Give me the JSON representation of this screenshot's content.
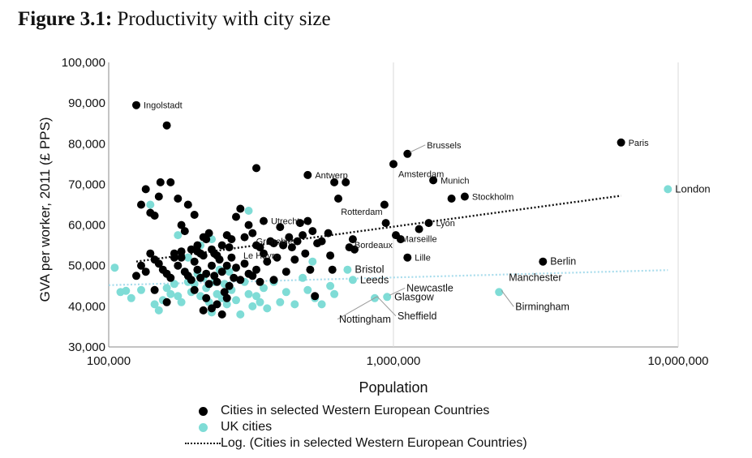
{
  "figure": {
    "label": "Figure 3.1:",
    "title": "Productivity with city size"
  },
  "colors": {
    "western": "#000000",
    "uk": "#7fdcd6",
    "western_trend": "#111111",
    "uk_trend": "#a8dcec",
    "gridline": "#d9d9d9",
    "axis": "#888888"
  },
  "chart_data": {
    "type": "scatter",
    "xlabel": "Population",
    "ylabel": "GVA per worker, 2011 (£ PPS)",
    "xscale": "log",
    "xlim": [
      100000,
      10000000
    ],
    "ylim": [
      30000,
      100000
    ],
    "xticks": [
      100000,
      1000000,
      10000000
    ],
    "xtick_labels": [
      "100,000",
      "1,000,000",
      "10,000,000"
    ],
    "yticks": [
      30000,
      40000,
      50000,
      60000,
      70000,
      80000,
      90000,
      100000
    ],
    "ytick_labels": [
      "30,000",
      "40,000",
      "50,000",
      "60,000",
      "70,000",
      "80,000",
      "90,000",
      "100,000"
    ],
    "vertical_gridline_at": 1000000,
    "series": [
      {
        "name": "Cities in selected Western European Countries",
        "color": "#000000",
        "points": [
          [
            125000,
            89500
          ],
          [
            160000,
            84500
          ],
          [
            330000,
            74000
          ],
          [
            500000,
            72300
          ],
          [
            620000,
            70500
          ],
          [
            680000,
            70500
          ],
          [
            930000,
            65000
          ],
          [
            1020000,
            57500
          ],
          [
            1060000,
            56500
          ],
          [
            1120000,
            52000
          ],
          [
            1230000,
            59000
          ],
          [
            1330000,
            60500
          ],
          [
            720000,
            56500
          ],
          [
            730000,
            54000
          ],
          [
            940000,
            60500
          ],
          [
            1000000,
            75000
          ],
          [
            1120000,
            77500
          ],
          [
            1380000,
            71000
          ],
          [
            1600000,
            66500
          ],
          [
            1780000,
            67000
          ],
          [
            3350000,
            51000
          ],
          [
            6300000,
            80300
          ],
          [
            130000,
            65000
          ],
          [
            135000,
            68800
          ],
          [
            140000,
            63000
          ],
          [
            145000,
            62300
          ],
          [
            150000,
            67000
          ],
          [
            152000,
            70500
          ],
          [
            165000,
            70500
          ],
          [
            175000,
            66500
          ],
          [
            180000,
            60000
          ],
          [
            185000,
            58500
          ],
          [
            190000,
            65000
          ],
          [
            200000,
            62500
          ],
          [
            205000,
            55000
          ],
          [
            210000,
            53000
          ],
          [
            215000,
            57000
          ],
          [
            220000,
            56500
          ],
          [
            225000,
            58000
          ],
          [
            230000,
            54000
          ],
          [
            240000,
            52500
          ],
          [
            250000,
            55000
          ],
          [
            260000,
            57500
          ],
          [
            270000,
            56500
          ],
          [
            280000,
            62000
          ],
          [
            290000,
            64000
          ],
          [
            300000,
            57000
          ],
          [
            310000,
            60000
          ],
          [
            320000,
            58000
          ],
          [
            330000,
            55000
          ],
          [
            340000,
            54500
          ],
          [
            350000,
            61000
          ],
          [
            360000,
            51000
          ],
          [
            370000,
            56000
          ],
          [
            380000,
            55500
          ],
          [
            390000,
            52000
          ],
          [
            400000,
            59500
          ],
          [
            410000,
            55000
          ],
          [
            420000,
            48500
          ],
          [
            430000,
            57000
          ],
          [
            440000,
            54500
          ],
          [
            450000,
            51500
          ],
          [
            460000,
            56000
          ],
          [
            470000,
            60500
          ],
          [
            480000,
            57500
          ],
          [
            490000,
            53000
          ],
          [
            500000,
            61000
          ],
          [
            510000,
            49000
          ],
          [
            520000,
            58500
          ],
          [
            540000,
            55500
          ],
          [
            560000,
            56000
          ],
          [
            590000,
            58000
          ],
          [
            600000,
            52500
          ],
          [
            610000,
            49000
          ],
          [
            640000,
            66500
          ],
          [
            700000,
            54500
          ],
          [
            140000,
            53000
          ],
          [
            145000,
            51500
          ],
          [
            150000,
            50500
          ],
          [
            155000,
            49000
          ],
          [
            160000,
            48000
          ],
          [
            165000,
            47000
          ],
          [
            170000,
            52000
          ],
          [
            175000,
            50000
          ],
          [
            180000,
            53500
          ],
          [
            185000,
            48500
          ],
          [
            190000,
            47500
          ],
          [
            195000,
            46500
          ],
          [
            200000,
            51000
          ],
          [
            205000,
            49000
          ],
          [
            210000,
            47000
          ],
          [
            215000,
            52500
          ],
          [
            220000,
            48000
          ],
          [
            225000,
            45500
          ],
          [
            230000,
            50000
          ],
          [
            235000,
            47500
          ],
          [
            240000,
            46000
          ],
          [
            245000,
            51500
          ],
          [
            250000,
            48500
          ],
          [
            255000,
            43500
          ],
          [
            260000,
            50000
          ],
          [
            265000,
            45000
          ],
          [
            270000,
            52000
          ],
          [
            275000,
            47000
          ],
          [
            280000,
            49500
          ],
          [
            290000,
            46500
          ],
          [
            300000,
            50500
          ],
          [
            310000,
            48000
          ],
          [
            320000,
            47500
          ],
          [
            330000,
            49000
          ],
          [
            340000,
            46000
          ],
          [
            350000,
            53000
          ],
          [
            215000,
            39000
          ],
          [
            230000,
            39500
          ],
          [
            240000,
            40500
          ],
          [
            250000,
            38000
          ],
          [
            260000,
            42000
          ],
          [
            380000,
            46500
          ],
          [
            130000,
            50000
          ],
          [
            135000,
            48500
          ],
          [
            125000,
            47500
          ],
          [
            145000,
            44000
          ],
          [
            160000,
            41000
          ],
          [
            200000,
            44000
          ],
          [
            220000,
            42000
          ],
          [
            530000,
            42500
          ],
          [
            170000,
            53000
          ],
          [
            180000,
            52000
          ],
          [
            195000,
            54000
          ],
          [
            205000,
            53500
          ],
          [
            235000,
            53000
          ],
          [
            265000,
            54500
          ]
        ]
      },
      {
        "name": "UK cities",
        "color": "#7fdcd6",
        "points": [
          [
            9200000,
            68800
          ],
          [
            2350000,
            43500
          ],
          [
            860000,
            42000
          ],
          [
            950000,
            42300
          ],
          [
            690000,
            49000
          ],
          [
            720000,
            46500
          ],
          [
            530000,
            42000
          ],
          [
            310000,
            63500
          ],
          [
            105000,
            49500
          ],
          [
            110000,
            43500
          ],
          [
            115000,
            43800
          ],
          [
            120000,
            42000
          ],
          [
            130000,
            44000
          ],
          [
            140000,
            65000
          ],
          [
            145000,
            40500
          ],
          [
            150000,
            39000
          ],
          [
            155000,
            41500
          ],
          [
            160000,
            44500
          ],
          [
            165000,
            43000
          ],
          [
            170000,
            45500
          ],
          [
            175000,
            42500
          ],
          [
            180000,
            41000
          ],
          [
            185000,
            48500
          ],
          [
            190000,
            46000
          ],
          [
            195000,
            43500
          ],
          [
            200000,
            45500
          ],
          [
            205000,
            48000
          ],
          [
            210000,
            42500
          ],
          [
            215000,
            47000
          ],
          [
            220000,
            44500
          ],
          [
            225000,
            41000
          ],
          [
            230000,
            38500
          ],
          [
            235000,
            46000
          ],
          [
            240000,
            43000
          ],
          [
            245000,
            49000
          ],
          [
            250000,
            42000
          ],
          [
            255000,
            45500
          ],
          [
            260000,
            40500
          ],
          [
            265000,
            48500
          ],
          [
            270000,
            44000
          ],
          [
            280000,
            41500
          ],
          [
            290000,
            38000
          ],
          [
            300000,
            46000
          ],
          [
            310000,
            43000
          ],
          [
            320000,
            40000
          ],
          [
            330000,
            42500
          ],
          [
            340000,
            41000
          ],
          [
            350000,
            44500
          ],
          [
            360000,
            39500
          ],
          [
            380000,
            46000
          ],
          [
            400000,
            41000
          ],
          [
            420000,
            43500
          ],
          [
            450000,
            40500
          ],
          [
            480000,
            47000
          ],
          [
            500000,
            44000
          ],
          [
            560000,
            40500
          ],
          [
            600000,
            45000
          ],
          [
            620000,
            43000
          ],
          [
            520000,
            51000
          ],
          [
            190000,
            52000
          ],
          [
            175000,
            57500
          ],
          [
            230000,
            56500
          ],
          [
            210000,
            55000
          ]
        ]
      }
    ],
    "trendlines": [
      {
        "name": "Log. (Cities in selected Western European Countries)",
        "color": "#111111",
        "style": "dotted",
        "x": [
          125000,
          6300000
        ],
        "y": [
          51000,
          67200
        ]
      },
      {
        "color": "#a8dcec",
        "style": "dotted",
        "x": [
          100000,
          9200000
        ],
        "y": [
          45200,
          48900
        ]
      }
    ],
    "annotations": [
      {
        "text": "Ingolstadt",
        "x": 125000,
        "y": 89500,
        "pos": "right"
      },
      {
        "text": "Antwerp",
        "x": 500000,
        "y": 72300,
        "pos": "right"
      },
      {
        "text": "Brussels",
        "x": 1120000,
        "y": 77500,
        "pos": "leader"
      },
      {
        "text": "Amsterdam",
        "x": 1000000,
        "y": 75000,
        "pos": "below-right"
      },
      {
        "text": "Paris",
        "x": 6300000,
        "y": 80300,
        "pos": "right"
      },
      {
        "text": "Munich",
        "x": 1380000,
        "y": 71000,
        "pos": "right"
      },
      {
        "text": "Stockholm",
        "x": 1780000,
        "y": 67000,
        "pos": "right"
      },
      {
        "text": "London",
        "x": 9200000,
        "y": 68800,
        "pos": "right"
      },
      {
        "text": "Rotterdam",
        "x": 940000,
        "y": 60500,
        "pos": "above-left"
      },
      {
        "text": "Utrecht",
        "x": 350000,
        "y": 61000,
        "pos": "right"
      },
      {
        "text": "Lyon",
        "x": 1330000,
        "y": 60500,
        "pos": "right"
      },
      {
        "text": "Marseille",
        "x": 1230000,
        "y": 59000,
        "pos": "below"
      },
      {
        "text": "Grenoble",
        "x": 470000,
        "y": 56000,
        "pos": "left"
      },
      {
        "text": "Bordeaux",
        "x": 1020000,
        "y": 57500,
        "pos": "below-left"
      },
      {
        "text": "Le Havre",
        "x": 280000,
        "y": 52500,
        "pos": "right"
      },
      {
        "text": "Lille",
        "x": 1120000,
        "y": 52000,
        "pos": "right"
      },
      {
        "text": "Berlin",
        "x": 3350000,
        "y": 51000,
        "pos": "right"
      },
      {
        "text": "Bristol",
        "x": 690000,
        "y": 49000,
        "pos": "right"
      },
      {
        "text": "Leeds",
        "x": 720000,
        "y": 46500,
        "pos": "right"
      },
      {
        "text": "Manchester",
        "x": 2350000,
        "y": 43500,
        "pos": "above"
      },
      {
        "text": "Newcastle",
        "x": 950000,
        "y": 42300,
        "pos": "leader"
      },
      {
        "text": "Glasgow",
        "x": 950000,
        "y": 42300,
        "pos": "right"
      },
      {
        "text": "Nottingham",
        "x": 860000,
        "y": 42000,
        "pos": "below-left"
      },
      {
        "text": "Sheffield",
        "x": 860000,
        "y": 42000,
        "pos": "below-right"
      },
      {
        "text": "Birmingham",
        "x": 2350000,
        "y": 43500,
        "pos": "below-right"
      }
    ],
    "legend": {
      "placement": "bottom",
      "entries": [
        "Cities in selected Western European Countries",
        "UK cities",
        "Log. (Cities in selected Western European Countries)"
      ]
    }
  }
}
